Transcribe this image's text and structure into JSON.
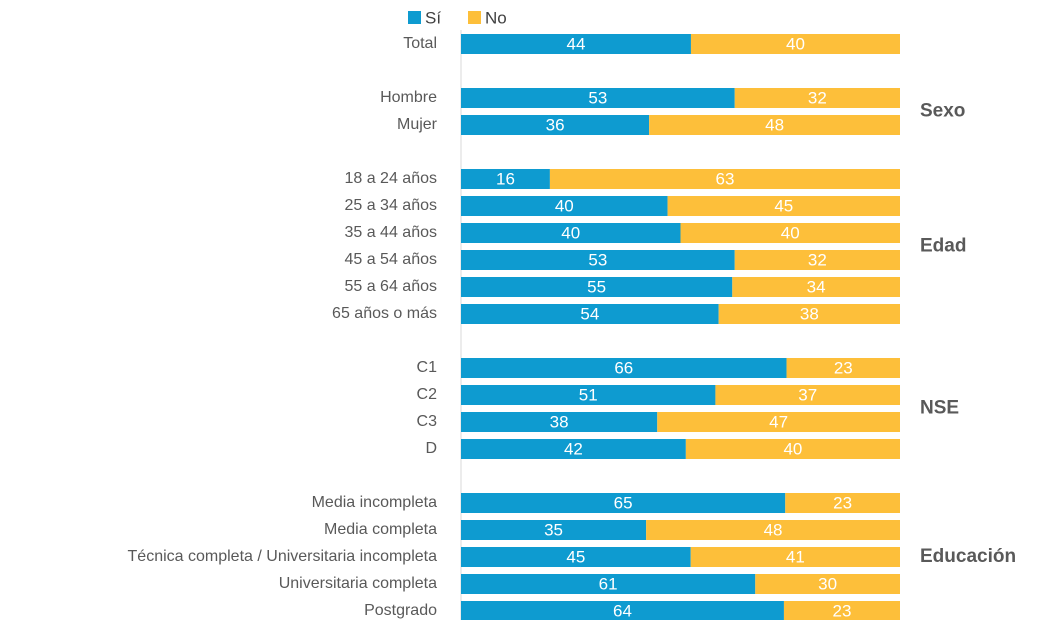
{
  "chart_data": {
    "type": "stacked-bar-horizontal-normalized",
    "categories": [
      "Total",
      null,
      "Hombre",
      "Mujer",
      null,
      "18 a 24 años",
      "25 a 34 años",
      "35 a 44 años",
      "45 a 54 años",
      "55 a 64 años",
      "65 años o más",
      null,
      "C1",
      "C2",
      "C3",
      "D",
      null,
      "Media incompleta",
      "Media completa",
      "Técnica completa / Universitaria incompleta",
      "Universitaria completa",
      "Postgrado"
    ],
    "series": [
      {
        "name": "Sí",
        "color": "#0e9bd0",
        "values": [
          44,
          null,
          53,
          36,
          null,
          16,
          40,
          40,
          53,
          55,
          54,
          null,
          66,
          51,
          38,
          42,
          null,
          65,
          35,
          45,
          61,
          64
        ]
      },
      {
        "name": "No",
        "color": "#fdbf3a",
        "values": [
          40,
          null,
          32,
          48,
          null,
          63,
          45,
          40,
          32,
          34,
          38,
          null,
          23,
          37,
          47,
          40,
          null,
          23,
          48,
          41,
          30,
          23
        ]
      }
    ],
    "groups": [
      "Sexo",
      "Edad",
      "NSE",
      "Educación"
    ],
    "legend": "top"
  }
}
